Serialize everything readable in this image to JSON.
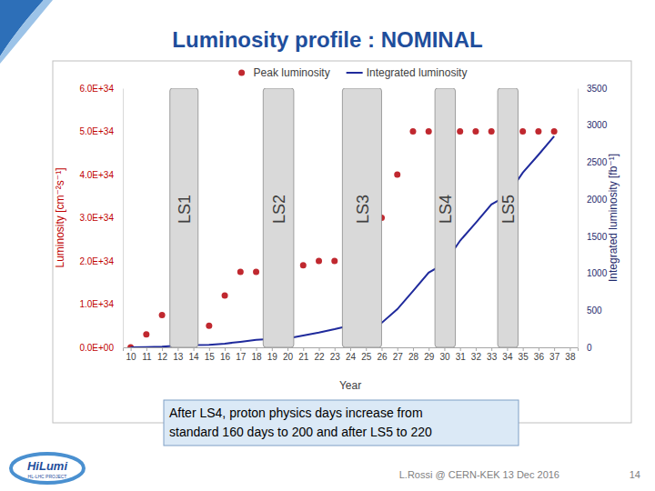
{
  "chart_data": {
    "type": "combo",
    "title": "Luminosity profile : NOMINAL",
    "x_label": "Year",
    "y_label": "Luminosity [cm⁻²s⁻¹]",
    "y2_label": "Integrated luminosity [fb⁻¹]",
    "legend": "top",
    "grid": false,
    "xlim": [
      9.5,
      38.5
    ],
    "xticks": [
      10,
      11,
      12,
      13,
      14,
      15,
      16,
      17,
      18,
      19,
      20,
      21,
      22,
      23,
      24,
      25,
      26,
      27,
      28,
      29,
      30,
      31,
      32,
      33,
      34,
      35,
      36,
      37,
      38
    ],
    "ylim": [
      0,
      6e+34
    ],
    "yticks": [
      {
        "value": 0,
        "label": "0.0E+00"
      },
      {
        "value": 1e+34,
        "label": "1.0E+34"
      },
      {
        "value": 2e+34,
        "label": "2.0E+34"
      },
      {
        "value": 3e+34,
        "label": "3.0E+34"
      },
      {
        "value": 4e+34,
        "label": "4.0E+34"
      },
      {
        "value": 5e+34,
        "label": "5.0E+34"
      },
      {
        "value": 6e+34,
        "label": "6.0E+34"
      }
    ],
    "y2lim": [
      0,
      3500
    ],
    "y2ticks": [
      0,
      500,
      1000,
      1500,
      2000,
      2500,
      3000,
      3500
    ],
    "shutdowns": [
      {
        "label": "LS1",
        "start": 12.5,
        "end": 14.3
      },
      {
        "label": "LS2",
        "start": 18.45,
        "end": 20.4
      },
      {
        "label": "LS3",
        "start": 23.5,
        "end": 26.0
      },
      {
        "label": "LS4",
        "start": 29.4,
        "end": 30.7
      },
      {
        "label": "LS5",
        "start": 33.4,
        "end": 34.7
      }
    ],
    "series": [
      {
        "name": "Peak luminosity",
        "type": "scatter",
        "marker": "circle",
        "color": "#c0282f",
        "x": [
          10,
          11,
          12,
          15,
          16,
          17,
          18,
          21,
          22,
          23,
          26,
          27,
          28,
          29,
          31,
          32,
          33,
          35,
          36,
          37
        ],
        "values": [
          0,
          3e+33,
          7.5e+33,
          5e+33,
          1.2e+34,
          1.75e+34,
          1.75e+34,
          1.9e+34,
          2e+34,
          2e+34,
          3e+34,
          4e+34,
          5e+34,
          5e+34,
          5e+34,
          5e+34,
          5e+34,
          5e+34,
          5e+34,
          5e+34
        ]
      },
      {
        "name": "Integrated luminosity",
        "type": "line",
        "line_style": "solid",
        "color": "#1f2a9c",
        "axis": "y2",
        "x": [
          10,
          11,
          12,
          13,
          14,
          15,
          16,
          17,
          18,
          19,
          20,
          21,
          22,
          23,
          24,
          25,
          26,
          27,
          28,
          29,
          30,
          31,
          32,
          33,
          34,
          35,
          36,
          37
        ],
        "values": [
          0,
          2,
          8,
          25,
          30,
          33,
          50,
          75,
          100,
          115,
          120,
          160,
          200,
          245,
          295,
          300,
          330,
          515,
          760,
          1010,
          1130,
          1440,
          1680,
          1930,
          2050,
          2360,
          2600,
          2850
        ]
      }
    ]
  },
  "slide": {
    "note": [
      "After LS4, proton physics days increase from",
      "standard 160 days to 200 and after LS5 to 220"
    ],
    "footer": "L.Rossi @ CERN-KEK 13 Dec 2016",
    "page": "14",
    "logo": {
      "name": "HiLumi",
      "subtitle": "HL-LHC PROJECT"
    }
  }
}
